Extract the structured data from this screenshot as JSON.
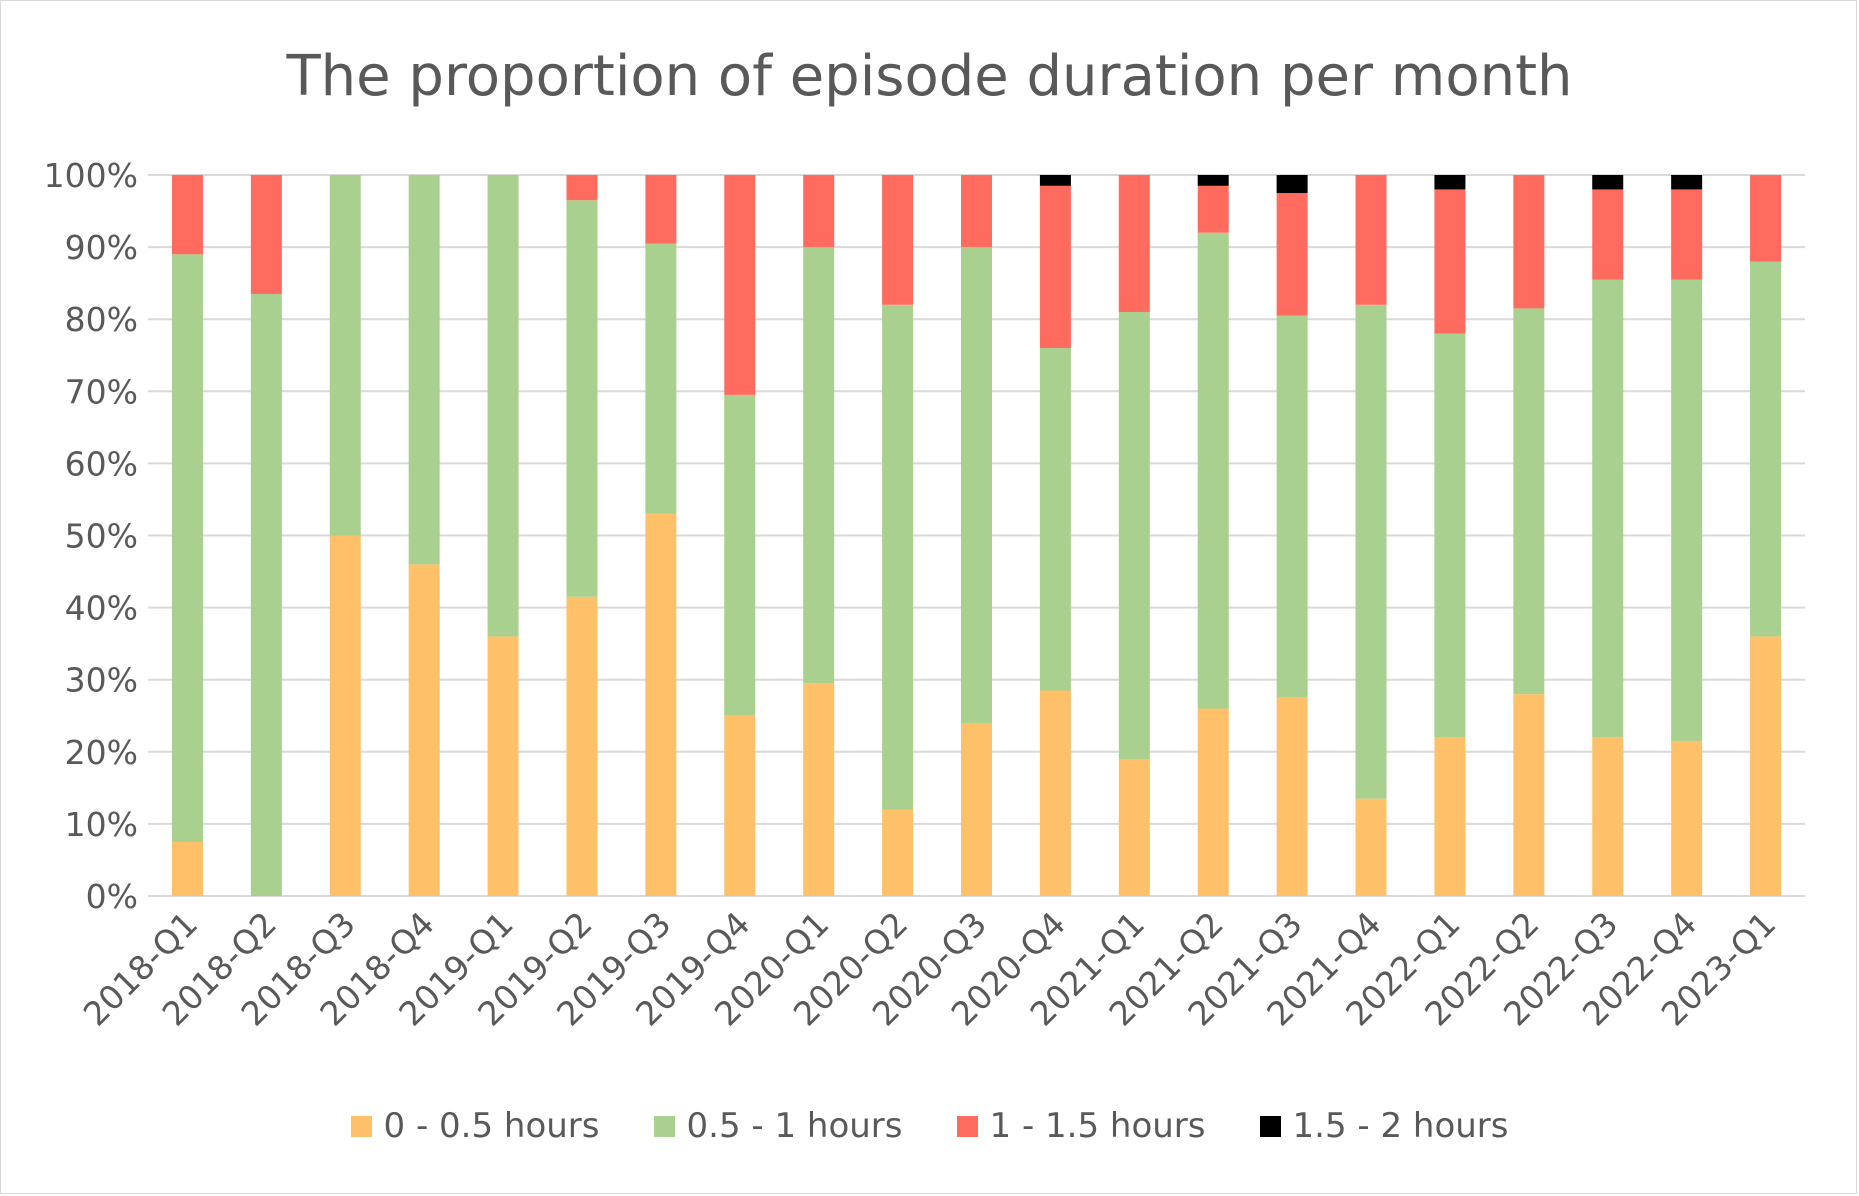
{
  "chart_data": {
    "type": "bar",
    "stacking": "percent",
    "title": "The proportion of episode duration per month",
    "xlabel": "",
    "ylabel": "",
    "ylim": [
      0,
      100
    ],
    "y_ticks": [
      "0%",
      "10%",
      "20%",
      "30%",
      "40%",
      "50%",
      "60%",
      "70%",
      "80%",
      "90%",
      "100%"
    ],
    "grid": "horizontal",
    "legend_position": "bottom",
    "categories": [
      "2018-Q1",
      "2018-Q2",
      "2018-Q3",
      "2018-Q4",
      "2019-Q1",
      "2019-Q2",
      "2019-Q3",
      "2019-Q4",
      "2020-Q1",
      "2020-Q2",
      "2020-Q3",
      "2020-Q4",
      "2021-Q1",
      "2021-Q2",
      "2021-Q3",
      "2021-Q4",
      "2022-Q1",
      "2022-Q2",
      "2022-Q3",
      "2022-Q4",
      "2023-Q1"
    ],
    "series": [
      {
        "name": "0 - 0.5 hours",
        "color": "#FFC06A",
        "values": [
          7.5,
          0,
          50,
          46,
          36,
          41.5,
          53,
          25,
          29.5,
          12,
          24,
          28.5,
          19,
          26,
          27.5,
          13.5,
          22,
          28,
          22,
          21.5,
          36
        ]
      },
      {
        "name": "0.5 - 1 hours",
        "color": "#A9D08E",
        "values": [
          81.5,
          83.5,
          50,
          54,
          64,
          55,
          37.5,
          44.5,
          60.5,
          70,
          66,
          47.5,
          62,
          66,
          53,
          68.5,
          56,
          53.5,
          63.5,
          64,
          52
        ]
      },
      {
        "name": "1 - 1.5 hours",
        "color": "#FF6B5F",
        "values": [
          11,
          16.5,
          0,
          0,
          0,
          3.5,
          9.5,
          30.5,
          10,
          18,
          10,
          22.5,
          19,
          6.5,
          17,
          18,
          20,
          18.5,
          12.5,
          12.5,
          12
        ]
      },
      {
        "name": "1.5 - 2 hours",
        "color": "#000000",
        "values": [
          0,
          0,
          0,
          0,
          0,
          0,
          0,
          0,
          0,
          0,
          0,
          1.5,
          0,
          1.5,
          2.5,
          0,
          2,
          0,
          2,
          2,
          0
        ]
      }
    ]
  }
}
